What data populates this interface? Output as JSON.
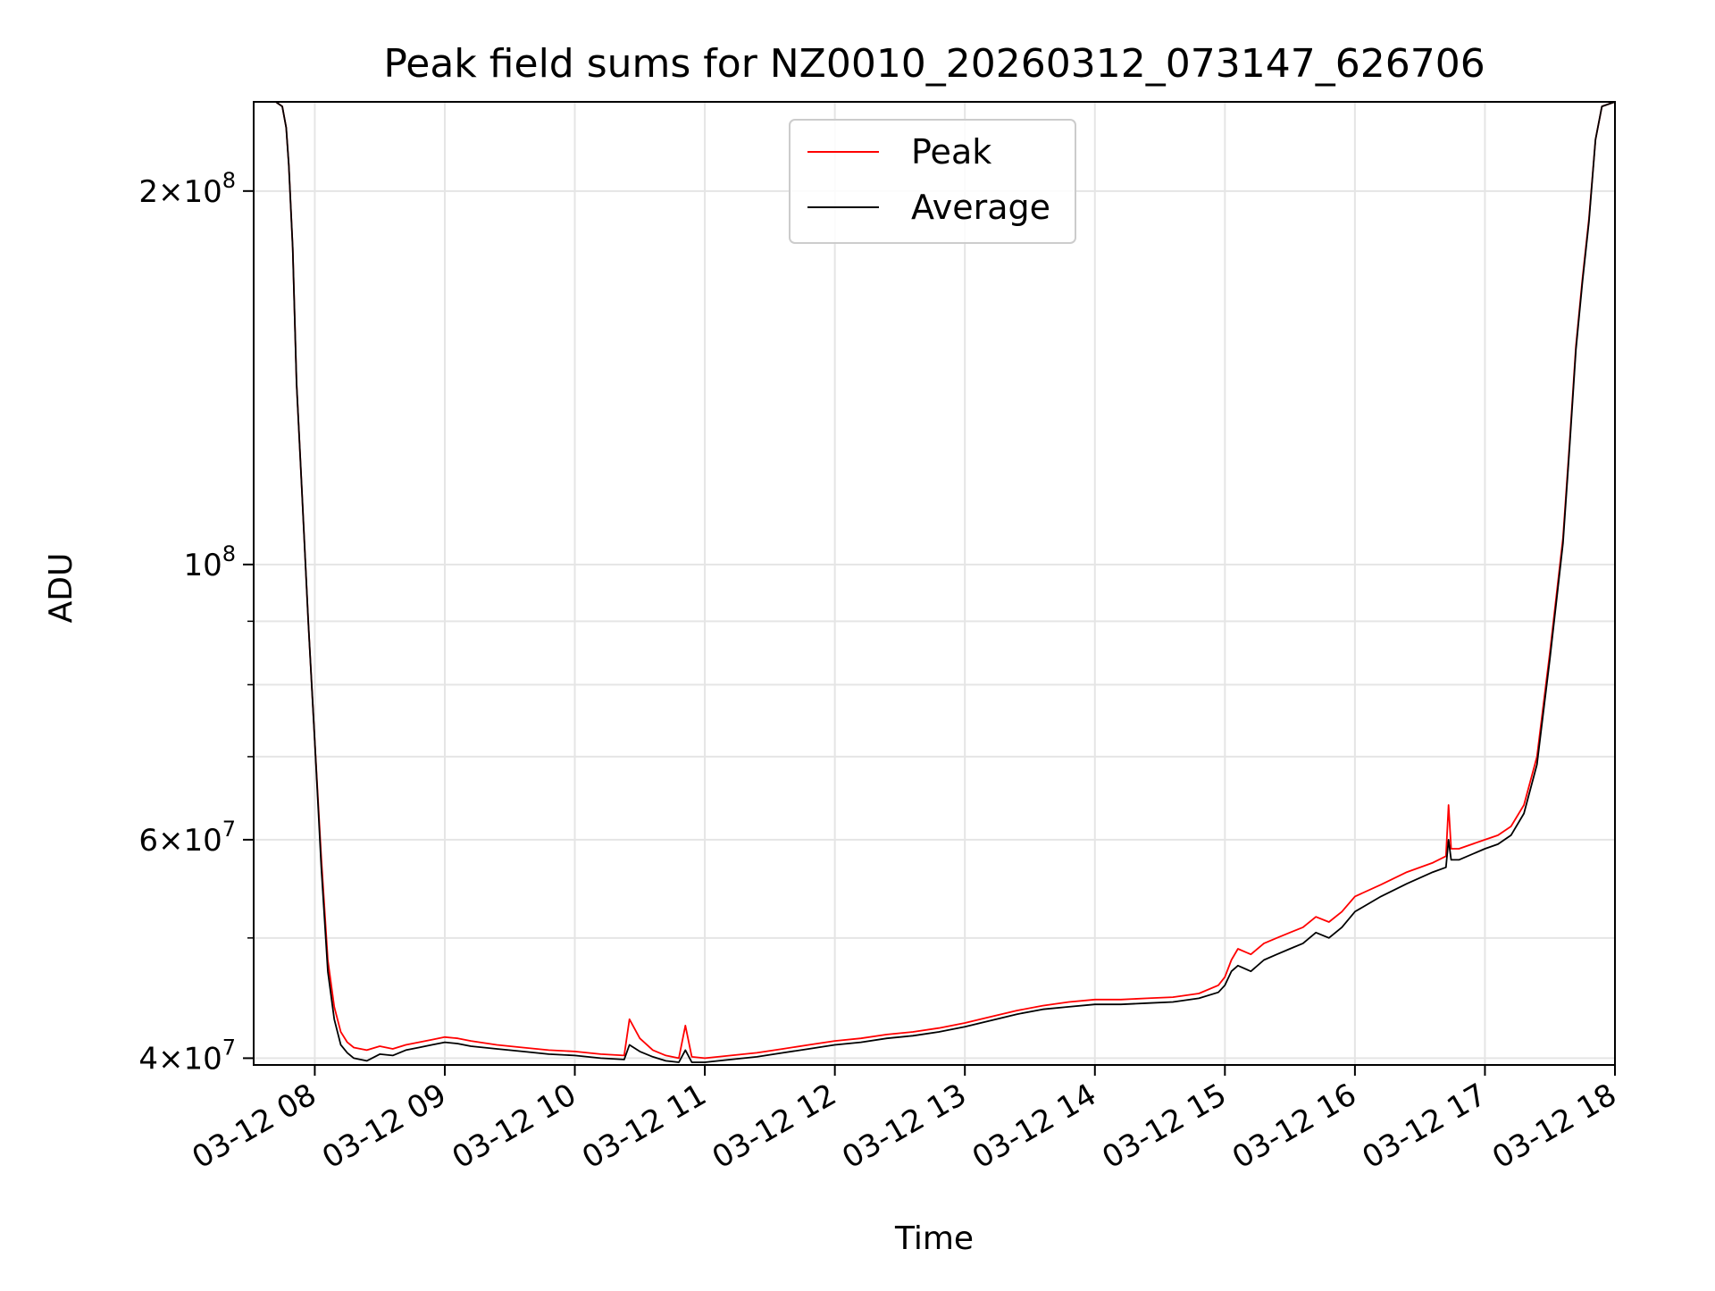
{
  "chart_data": {
    "type": "line",
    "title": "Peak field sums for NZ0010_20260312_073147_626706",
    "xlabel": "Time",
    "ylabel": "ADU",
    "yscale": "log",
    "xlim": [
      7.53,
      18.0
    ],
    "ylim": [
      39500000,
      236000000
    ],
    "grid": true,
    "legend": {
      "location": "upper center",
      "entries": [
        "Peak",
        "Average"
      ]
    },
    "colors": {
      "peak": "#ff0000",
      "average": "#000000",
      "grid": "#e5e5e5"
    },
    "x_ticks": [
      {
        "value": 8,
        "label": "03-12 08"
      },
      {
        "value": 9,
        "label": "03-12 09"
      },
      {
        "value": 10,
        "label": "03-12 10"
      },
      {
        "value": 11,
        "label": "03-12 11"
      },
      {
        "value": 12,
        "label": "03-12 12"
      },
      {
        "value": 13,
        "label": "03-12 13"
      },
      {
        "value": 14,
        "label": "03-12 14"
      },
      {
        "value": 15,
        "label": "03-12 15"
      },
      {
        "value": 16,
        "label": "03-12 16"
      },
      {
        "value": 17,
        "label": "03-12 17"
      },
      {
        "value": 18,
        "label": "03-12 18"
      }
    ],
    "y_major_ticks": [
      {
        "value": 40000000,
        "mantissa": "4",
        "exponent": "7"
      },
      {
        "value": 60000000,
        "mantissa": "6",
        "exponent": "7"
      },
      {
        "value": 100000000,
        "mantissa": "",
        "exponent": "8"
      },
      {
        "value": 200000000,
        "mantissa": "2",
        "exponent": "8"
      }
    ],
    "y_minor_ticks": [
      50000000,
      70000000,
      80000000,
      90000000
    ],
    "series": [
      {
        "name": "Peak",
        "x": [
          7.53,
          7.7,
          7.75,
          7.78,
          7.8,
          7.83,
          7.86,
          7.9,
          7.95,
          8.0,
          8.05,
          8.1,
          8.15,
          8.2,
          8.25,
          8.3,
          8.4,
          8.5,
          8.6,
          8.7,
          8.8,
          8.9,
          9.0,
          9.1,
          9.2,
          9.4,
          9.6,
          9.8,
          10.0,
          10.2,
          10.38,
          10.42,
          10.5,
          10.6,
          10.7,
          10.8,
          10.85,
          10.9,
          11.0,
          11.2,
          11.4,
          11.6,
          11.8,
          12.0,
          12.2,
          12.4,
          12.6,
          12.8,
          13.0,
          13.2,
          13.4,
          13.6,
          13.8,
          14.0,
          14.2,
          14.4,
          14.6,
          14.8,
          14.95,
          15.0,
          15.05,
          15.1,
          15.2,
          15.3,
          15.4,
          15.5,
          15.6,
          15.7,
          15.8,
          15.9,
          16.0,
          16.2,
          16.4,
          16.6,
          16.7,
          16.72,
          16.74,
          16.8,
          17.0,
          17.1,
          17.2,
          17.3,
          17.4,
          17.5,
          17.6,
          17.65,
          17.7,
          17.75,
          17.8,
          17.85,
          17.9,
          18.0
        ],
        "y": [
          236000000,
          236000000,
          234000000,
          225000000,
          210000000,
          180000000,
          140000000,
          115000000,
          90000000,
          72000000,
          58000000,
          48000000,
          44000000,
          42000000,
          41200000,
          40800000,
          40600000,
          40900000,
          40700000,
          41000000,
          41200000,
          41400000,
          41600000,
          41500000,
          41300000,
          41000000,
          40800000,
          40600000,
          40500000,
          40300000,
          40200000,
          43000000,
          41500000,
          40600000,
          40200000,
          40000000,
          42500000,
          40100000,
          40000000,
          40200000,
          40400000,
          40700000,
          41000000,
          41300000,
          41500000,
          41800000,
          42000000,
          42300000,
          42700000,
          43200000,
          43700000,
          44100000,
          44400000,
          44600000,
          44600000,
          44700000,
          44800000,
          45100000,
          45800000,
          46500000,
          48000000,
          49000000,
          48500000,
          49500000,
          50000000,
          50500000,
          51000000,
          52000000,
          51500000,
          52500000,
          54000000,
          55200000,
          56500000,
          57500000,
          58200000,
          64000000,
          59000000,
          59000000,
          60000000,
          60500000,
          61500000,
          64000000,
          70000000,
          85000000,
          105000000,
          125000000,
          150000000,
          170000000,
          190000000,
          220000000,
          234000000,
          236000000
        ]
      },
      {
        "name": "Average",
        "x": [
          7.53,
          7.7,
          7.75,
          7.78,
          7.8,
          7.83,
          7.86,
          7.9,
          7.95,
          8.0,
          8.05,
          8.1,
          8.15,
          8.2,
          8.25,
          8.3,
          8.4,
          8.5,
          8.6,
          8.7,
          8.8,
          8.9,
          9.0,
          9.1,
          9.2,
          9.4,
          9.6,
          9.8,
          10.0,
          10.2,
          10.38,
          10.42,
          10.5,
          10.6,
          10.7,
          10.8,
          10.85,
          10.9,
          11.0,
          11.2,
          11.4,
          11.6,
          11.8,
          12.0,
          12.2,
          12.4,
          12.6,
          12.8,
          13.0,
          13.2,
          13.4,
          13.6,
          13.8,
          14.0,
          14.2,
          14.4,
          14.6,
          14.8,
          14.95,
          15.0,
          15.05,
          15.1,
          15.2,
          15.3,
          15.4,
          15.5,
          15.6,
          15.7,
          15.8,
          15.9,
          16.0,
          16.2,
          16.4,
          16.6,
          16.7,
          16.72,
          16.74,
          16.8,
          17.0,
          17.1,
          17.2,
          17.3,
          17.4,
          17.5,
          17.6,
          17.65,
          17.7,
          17.75,
          17.8,
          17.85,
          17.9,
          18.0
        ],
        "y": [
          236000000,
          236000000,
          234000000,
          225000000,
          210000000,
          180000000,
          140000000,
          115000000,
          90000000,
          72000000,
          57000000,
          47000000,
          43000000,
          41000000,
          40400000,
          40000000,
          39800000,
          40300000,
          40200000,
          40600000,
          40800000,
          41000000,
          41200000,
          41100000,
          40900000,
          40700000,
          40500000,
          40300000,
          40200000,
          40000000,
          39900000,
          41000000,
          40500000,
          40100000,
          39800000,
          39700000,
          40600000,
          39700000,
          39700000,
          39900000,
          40100000,
          40400000,
          40700000,
          41000000,
          41200000,
          41500000,
          41700000,
          42000000,
          42400000,
          42900000,
          43400000,
          43800000,
          44000000,
          44200000,
          44200000,
          44300000,
          44400000,
          44700000,
          45200000,
          45800000,
          47000000,
          47500000,
          47000000,
          48000000,
          48500000,
          49000000,
          49500000,
          50500000,
          50000000,
          51000000,
          52500000,
          54000000,
          55300000,
          56500000,
          57000000,
          60000000,
          57800000,
          57800000,
          59000000,
          59500000,
          60500000,
          63000000,
          69000000,
          84000000,
          104000000,
          124000000,
          149000000,
          169000000,
          189000000,
          220000000,
          234000000,
          236000000
        ]
      }
    ]
  }
}
